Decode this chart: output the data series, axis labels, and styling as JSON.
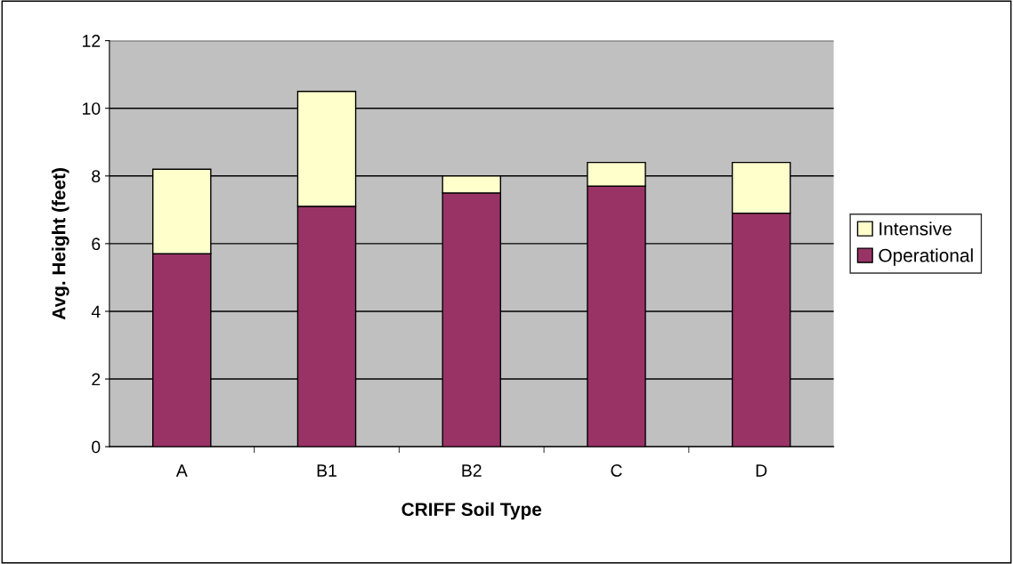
{
  "chart_data": {
    "type": "bar",
    "xlabel": "CRIFF Soil Type",
    "ylabel": "Avg. Height (feet)",
    "categories": [
      "A",
      "B1",
      "B2",
      "C",
      "D"
    ],
    "series": [
      {
        "name": "Operational",
        "color": "#993366",
        "values": [
          5.7,
          7.1,
          7.5,
          7.7,
          6.9
        ]
      },
      {
        "name": "Intensive",
        "color": "#ffffcc",
        "values": [
          2.5,
          3.4,
          0.5,
          0.7,
          1.5
        ]
      }
    ],
    "stacked": true,
    "ylim": [
      0,
      12
    ],
    "yticks": [
      0,
      2,
      4,
      6,
      8,
      10,
      12
    ],
    "grid": "y",
    "legend": "right"
  }
}
